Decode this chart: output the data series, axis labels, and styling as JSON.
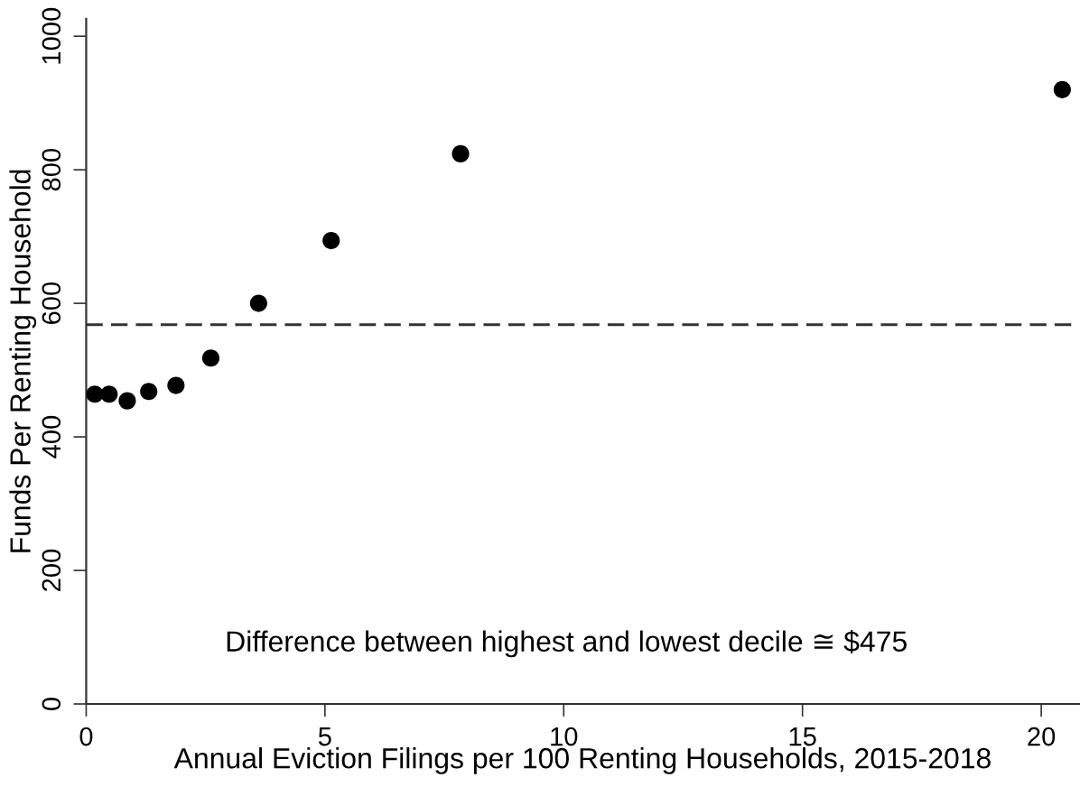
{
  "chart_data": {
    "type": "scatter",
    "x": [
      0.18,
      0.48,
      0.86,
      1.31,
      1.88,
      2.61,
      3.61,
      5.13,
      7.84,
      20.44
    ],
    "series": [
      {
        "color": "#000000",
        "values": [
          464,
          464,
          454,
          468,
          477,
          518,
          600,
          694,
          824,
          920
        ]
      }
    ],
    "marker": "circle",
    "xlim": [
      0,
      20.8
    ],
    "ylim": [
      0,
      1026
    ],
    "xticks": [
      0,
      5,
      10,
      15,
      20
    ],
    "yticks": [
      0,
      200,
      400,
      600,
      800,
      1000
    ],
    "xlabel": "Annual Eviction Filings per 100 Renting Households, 2015-2018",
    "ylabel": "Funds Per Renting Household",
    "ref_lines": [
      {
        "axis": "y",
        "value": 568,
        "color": "#333333",
        "line_style": "dashed"
      }
    ],
    "annotations": [
      "Difference between highest and lowest decile ≅ $475"
    ]
  }
}
